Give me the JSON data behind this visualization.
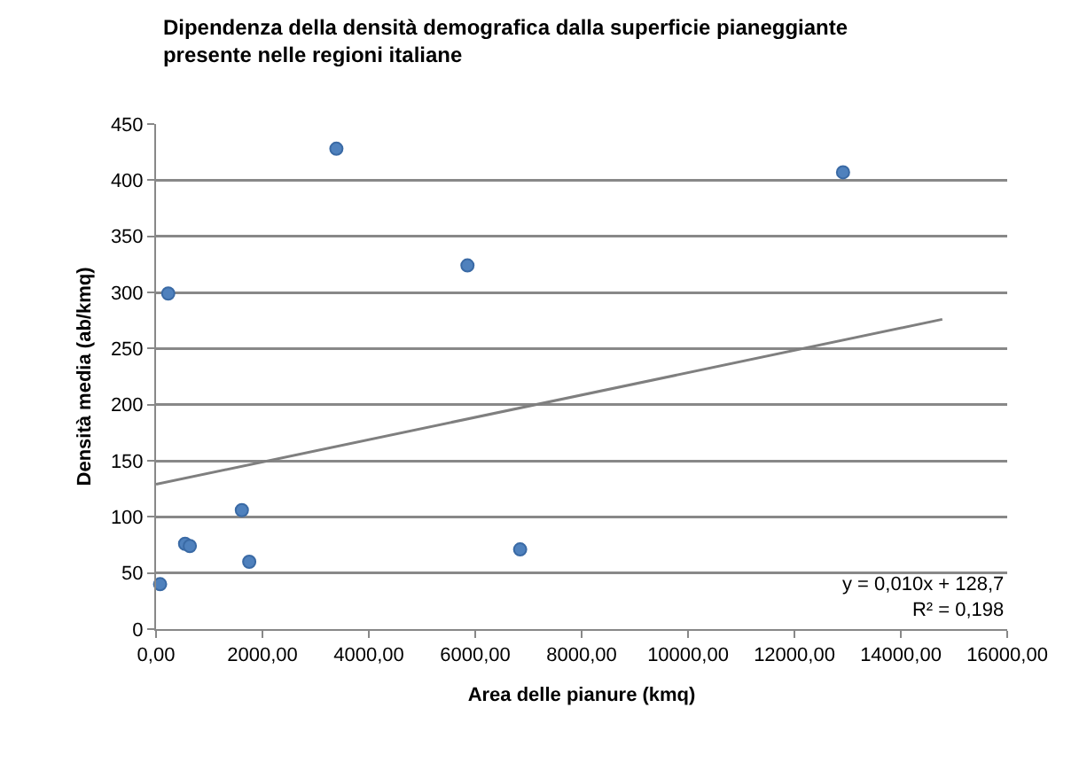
{
  "chart_data": {
    "type": "scatter",
    "title": "Dipendenza della densità demografica dalla superficie pianeggiante\npresente nelle regioni italiane",
    "xlabel": "Area delle pianure (kmq)",
    "ylabel": "Densità media (ab/kmq)",
    "series": [
      {
        "color": "#4f81bd",
        "x": [
          76,
          229,
          546,
          635,
          1613,
          1752,
          3390,
          5854,
          6844,
          12914
        ],
        "values": [
          40,
          299,
          76,
          74,
          106,
          60,
          428,
          324,
          71,
          407
        ]
      },
      {
        "type": "line",
        "marker": "none",
        "color": "#7f7f7f",
        "x": [
          0,
          14780
        ],
        "values": [
          129,
          276
        ]
      }
    ],
    "annotations": [
      "y = 0,010x + 128,7\nR² = 0,198"
    ],
    "xlim": [
      0,
      16000
    ],
    "xticks": [
      {
        "value": 0,
        "label": "0,00"
      },
      {
        "value": 2000,
        "label": "2000,00"
      },
      {
        "value": 4000,
        "label": "4000,00"
      },
      {
        "value": 6000,
        "label": "6000,00"
      },
      {
        "value": 8000,
        "label": "8000,00"
      },
      {
        "value": 10000,
        "label": "10000,00"
      },
      {
        "value": 12000,
        "label": "12000,00"
      },
      {
        "value": 14000,
        "label": "14000,00"
      },
      {
        "value": 16000,
        "label": "16000,00"
      }
    ],
    "ylim": [
      0,
      450
    ],
    "yticks": [
      0,
      50,
      100,
      150,
      200,
      250,
      300,
      350,
      400,
      450
    ],
    "grid": "y",
    "marker": "circle"
  }
}
